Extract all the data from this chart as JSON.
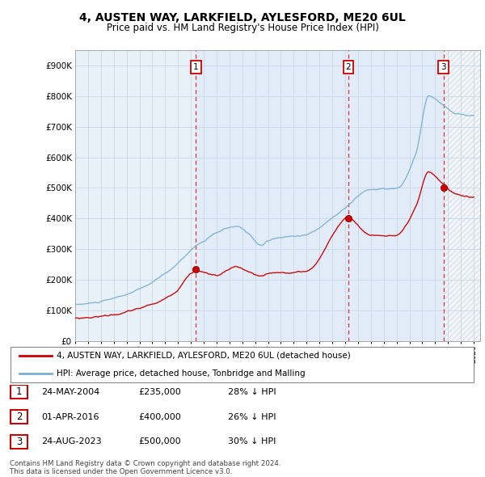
{
  "title": "4, AUSTEN WAY, LARKFIELD, AYLESFORD, ME20 6UL",
  "subtitle": "Price paid vs. HM Land Registry's House Price Index (HPI)",
  "ylim": [
    0,
    950000
  ],
  "yticks": [
    0,
    100000,
    200000,
    300000,
    400000,
    500000,
    600000,
    700000,
    800000,
    900000
  ],
  "ytick_labels": [
    "£0",
    "£100K",
    "£200K",
    "£300K",
    "£400K",
    "£500K",
    "£600K",
    "£700K",
    "£800K",
    "£900K"
  ],
  "xlim_start": 1995.0,
  "xlim_end": 2026.5,
  "sale_dates": [
    2004.38,
    2016.25,
    2023.65
  ],
  "sale_prices": [
    235000,
    400000,
    500000
  ],
  "sale_labels": [
    "1",
    "2",
    "3"
  ],
  "sale_date_strs": [
    "24-MAY-2004",
    "01-APR-2016",
    "24-AUG-2023"
  ],
  "sale_price_strs": [
    "£235,000",
    "£400,000",
    "£500,000"
  ],
  "sale_hpi_strs": [
    "28% ↓ HPI",
    "26% ↓ HPI",
    "30% ↓ HPI"
  ],
  "hpi_color": "#7bafd4",
  "price_color": "#cc0000",
  "vline_color": "#dd3333",
  "grid_color": "#c8d8e8",
  "bg_color": "#e8f0f8",
  "shade_color": "#ddeaf8",
  "legend_label_price": "4, AUSTEN WAY, LARKFIELD, AYLESFORD, ME20 6UL (detached house)",
  "legend_label_hpi": "HPI: Average price, detached house, Tonbridge and Malling",
  "footnote": "Contains HM Land Registry data © Crown copyright and database right 2024.\nThis data is licensed under the Open Government Licence v3.0."
}
